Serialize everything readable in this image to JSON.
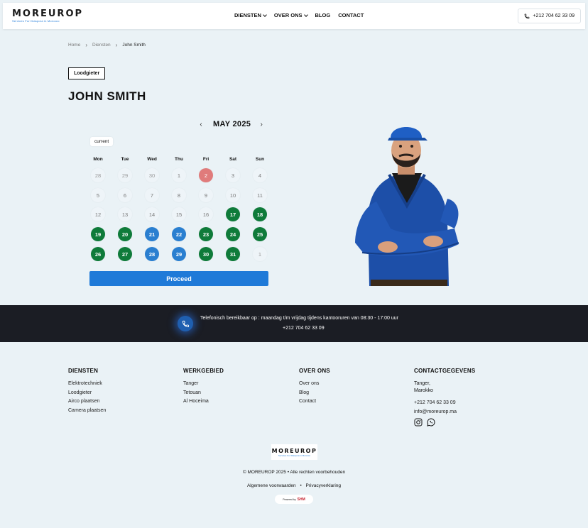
{
  "header": {
    "logo_word": "MOREUROP",
    "logo_tagline": "Services For Diaspora in Morocco",
    "nav": [
      {
        "label": "DIENSTEN",
        "dropdown": true
      },
      {
        "label": "OVER ONS",
        "dropdown": true
      },
      {
        "label": "BLOG",
        "dropdown": false
      },
      {
        "label": "CONTACT",
        "dropdown": false
      }
    ],
    "phone": "+212 704 62 33 09"
  },
  "breadcrumb": [
    "Home",
    "Diensten",
    "John Smith"
  ],
  "category_tag": "Loodgieter",
  "page_title": "JOHN SMITH",
  "calendar": {
    "prev": "‹",
    "month_label": "MAY 2025",
    "next": "›",
    "current_badge": "current",
    "weekdays": [
      "Mon",
      "Tue",
      "Wed",
      "Thu",
      "Fri",
      "Sat",
      "Sun"
    ],
    "rows": [
      [
        {
          "d": "28",
          "s": "other"
        },
        {
          "d": "29",
          "s": "other"
        },
        {
          "d": "30",
          "s": "other"
        },
        {
          "d": "1",
          "s": "normal"
        },
        {
          "d": "2",
          "s": "red"
        },
        {
          "d": "3",
          "s": "normal"
        },
        {
          "d": "4",
          "s": "normal"
        }
      ],
      [
        {
          "d": "5",
          "s": "normal"
        },
        {
          "d": "6",
          "s": "normal"
        },
        {
          "d": "7",
          "s": "normal"
        },
        {
          "d": "8",
          "s": "normal"
        },
        {
          "d": "9",
          "s": "normal"
        },
        {
          "d": "10",
          "s": "normal"
        },
        {
          "d": "11",
          "s": "normal"
        }
      ],
      [
        {
          "d": "12",
          "s": "normal"
        },
        {
          "d": "13",
          "s": "normal"
        },
        {
          "d": "14",
          "s": "normal"
        },
        {
          "d": "15",
          "s": "normal"
        },
        {
          "d": "16",
          "s": "normal"
        },
        {
          "d": "17",
          "s": "green"
        },
        {
          "d": "18",
          "s": "green"
        }
      ],
      [
        {
          "d": "19",
          "s": "green"
        },
        {
          "d": "20",
          "s": "green"
        },
        {
          "d": "21",
          "s": "blue"
        },
        {
          "d": "22",
          "s": "blue"
        },
        {
          "d": "23",
          "s": "green"
        },
        {
          "d": "24",
          "s": "green"
        },
        {
          "d": "25",
          "s": "green"
        }
      ],
      [
        {
          "d": "26",
          "s": "green"
        },
        {
          "d": "27",
          "s": "green"
        },
        {
          "d": "28",
          "s": "blue"
        },
        {
          "d": "29",
          "s": "blue"
        },
        {
          "d": "30",
          "s": "green"
        },
        {
          "d": "31",
          "s": "green"
        },
        {
          "d": "1",
          "s": "other"
        }
      ]
    ],
    "proceed_label": "Proceed"
  },
  "colors": {
    "available": "#0f7b3a",
    "selected": "#2a7fd0",
    "today": "#e07b7b",
    "accent": "#1f7ad8"
  },
  "contact_band": {
    "text": "Telefonisch bereikbaar op : maandag t/m vrijdag tijdens kantooruren van 08:30 - 17:00 uur",
    "phone": "+212 704 62 33 09"
  },
  "footer": {
    "columns": [
      {
        "title": "DIENSTEN",
        "items": [
          "Elektrotechniek",
          "Loodgieter",
          "Airco plaatsen",
          "Camera plaatsen"
        ]
      },
      {
        "title": "WERKGEBIED",
        "items": [
          "Tanger",
          "Tetouan",
          "Al Hoceima"
        ]
      },
      {
        "title": "OVER ONS",
        "items": [
          "Over ons",
          "Blog",
          "Contact"
        ]
      }
    ],
    "contact": {
      "title": "CONTACTGEGEVENS",
      "city": "Tanger,",
      "country": "Marokko",
      "phone": "+212 704 62 33 09",
      "email": "info@moreurop.ma"
    },
    "logo_word": "MOREUROP",
    "logo_tagline": "Services For Diaspora in Morocco",
    "copyright": "© MOREUROP 2025 • Alle rechten voorbehouden",
    "legal_terms": "Algemene voorwaarden",
    "legal_sep": "•",
    "legal_privacy": "Privacyverklaring",
    "powered_by": "Powered by",
    "powered_brand": "SHM"
  }
}
